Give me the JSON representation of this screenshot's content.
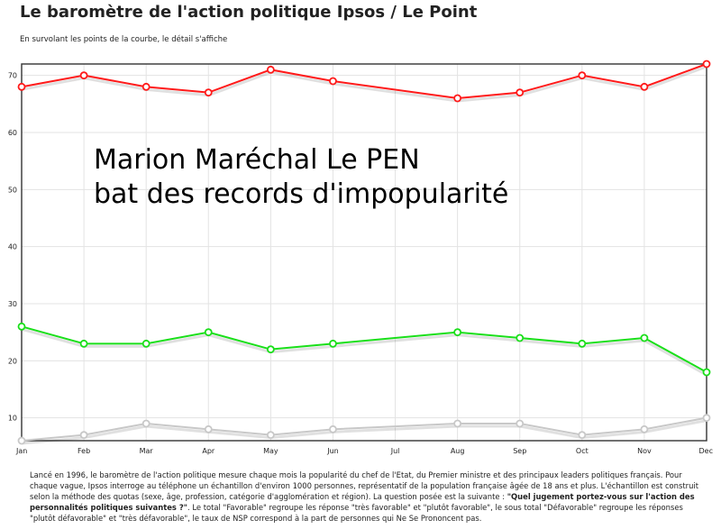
{
  "header": {
    "title": "Le baromètre de l'action politique Ipsos / Le Point",
    "subtitle": "En survolant les points de la courbe, le détail s'affiche"
  },
  "overlay": {
    "line1": "Marion Maréchal Le PEN",
    "line2": "bat des records d'impopularité"
  },
  "chart_data": {
    "type": "line",
    "title": "",
    "xlabel": "",
    "ylabel": "",
    "categories": [
      "Jan",
      "Feb",
      "Mar",
      "Apr",
      "May",
      "Jun",
      "Jul",
      "Aug",
      "Sep",
      "Oct",
      "Nov",
      "Dec"
    ],
    "ylim": [
      6,
      72
    ],
    "yticks": [
      10,
      20,
      30,
      40,
      50,
      60,
      70
    ],
    "grid": true,
    "legend": "none",
    "series": [
      {
        "color": "#ff1a1a",
        "points": [
          [
            0,
            68
          ],
          [
            1,
            70
          ],
          [
            2,
            68
          ],
          [
            3,
            67
          ],
          [
            4,
            71
          ],
          [
            5,
            69
          ],
          [
            7,
            66
          ],
          [
            8,
            67
          ],
          [
            9,
            70
          ],
          [
            10,
            68
          ],
          [
            11,
            72
          ]
        ]
      },
      {
        "color": "#1adf1a",
        "points": [
          [
            0,
            26
          ],
          [
            1,
            23
          ],
          [
            2,
            23
          ],
          [
            3,
            25
          ],
          [
            4,
            22
          ],
          [
            5,
            23
          ],
          [
            7,
            25
          ],
          [
            8,
            24
          ],
          [
            9,
            23
          ],
          [
            10,
            24
          ],
          [
            11,
            18
          ]
        ]
      },
      {
        "color": "#c8c8c8",
        "points": [
          [
            0,
            6
          ],
          [
            1,
            7
          ],
          [
            2,
            9
          ],
          [
            3,
            8
          ],
          [
            4,
            7
          ],
          [
            5,
            8
          ],
          [
            7,
            9
          ],
          [
            8,
            9
          ],
          [
            9,
            7
          ],
          [
            10,
            8
          ],
          [
            11,
            10
          ]
        ]
      }
    ]
  },
  "footnote": {
    "part1": "Lancé en 1996, le baromètre de l'action politique mesure chaque mois la popularité du chef de l'Etat, du Premier ministre et des principaux leaders politiques français. Pour chaque vague, Ipsos interroge au téléphone un échantillon d'environ 1000 personnes, représentatif de la population française âgée de 18 ans et plus. L'échantillon est construit selon la méthode des quotas (sexe, âge, profession, catégorie d'agglomération et région). La question posée est la suivante : ",
    "question": "\"Quel jugement portez-vous sur l'action des personnalités politiques suivantes ?\"",
    "part2": ". Le total \"Favorable\" regroupe les réponse \"très favorable\" et \"plutôt favorable\", le sous total \"Défavorable\" regroupe les réponses \"plutôt défavorable\" et \"très défavorable\", le taux de NSP correspond à la part de personnes qui Ne Se Prononcent pas."
  }
}
